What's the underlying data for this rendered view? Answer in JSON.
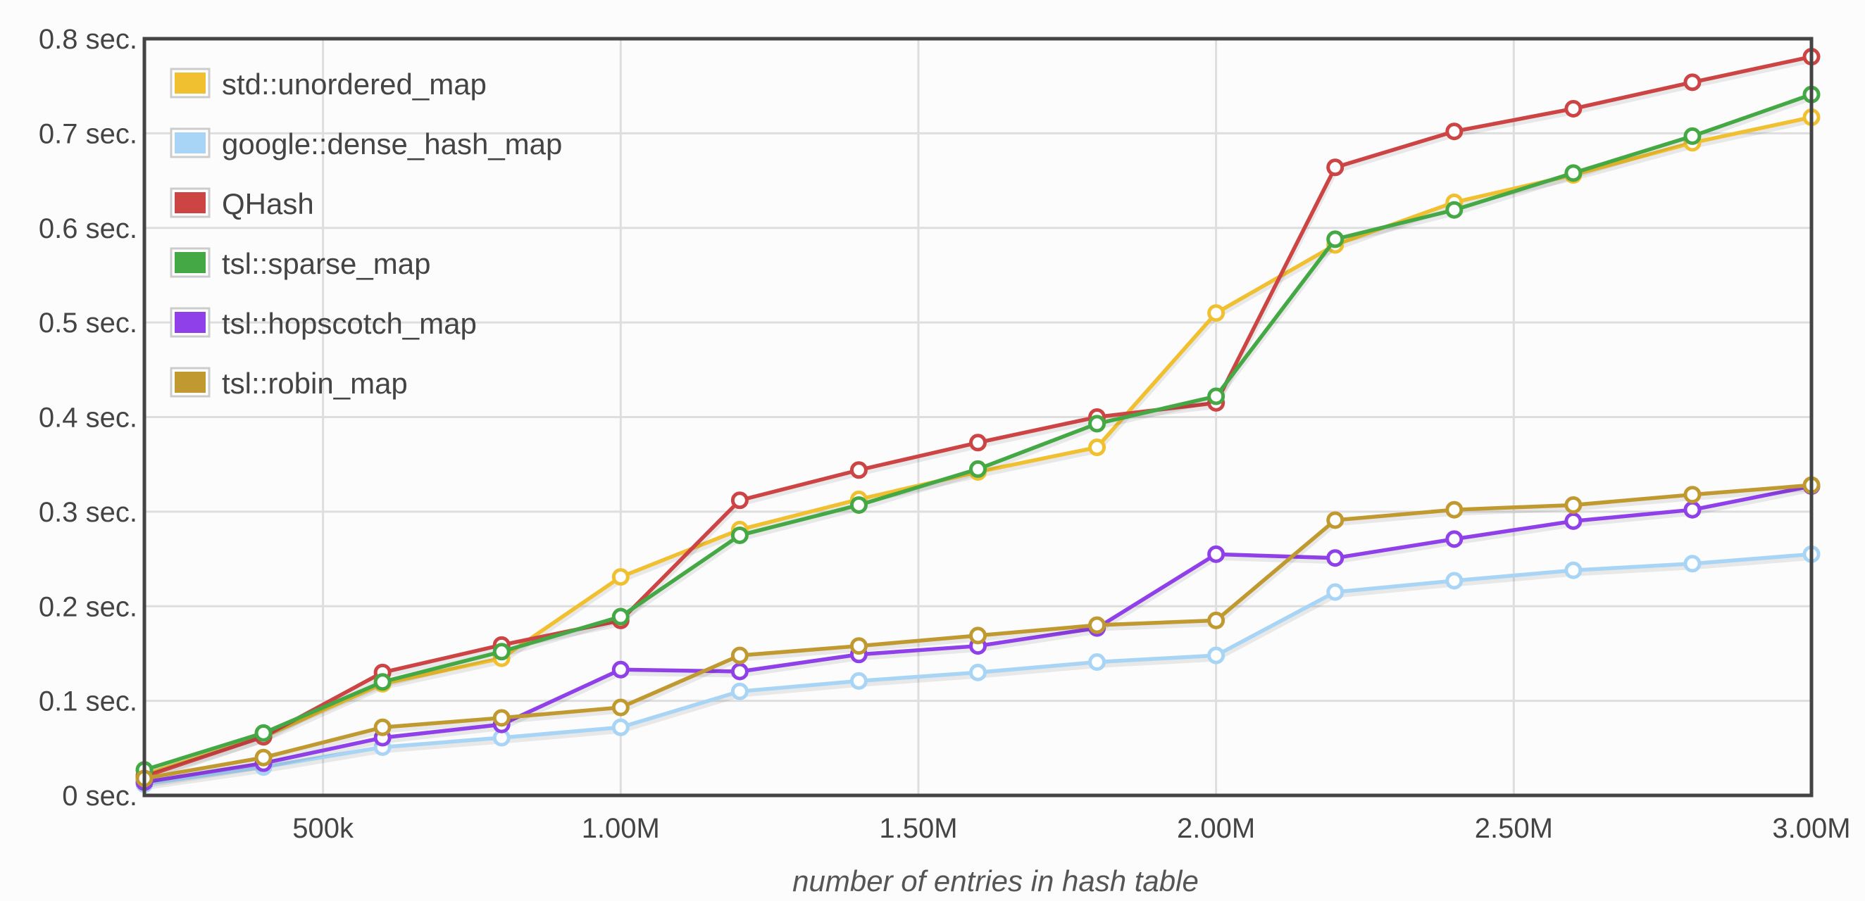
{
  "chart_data": {
    "type": "line",
    "title": "",
    "xlabel": "number of entries in hash table",
    "ylabel": "",
    "xlim": [
      200000,
      3000000
    ],
    "ylim": [
      0,
      0.8
    ],
    "grid": true,
    "legend_position": "top-left",
    "x_ticks": [
      {
        "value": 500000,
        "label": "500k"
      },
      {
        "value": 1000000,
        "label": "1.00M"
      },
      {
        "value": 1500000,
        "label": "1.50M"
      },
      {
        "value": 2000000,
        "label": "2.00M"
      },
      {
        "value": 2500000,
        "label": "2.50M"
      },
      {
        "value": 3000000,
        "label": "3.00M"
      }
    ],
    "y_ticks": [
      {
        "value": 0,
        "label": "0 sec."
      },
      {
        "value": 0.1,
        "label": "0.1 sec."
      },
      {
        "value": 0.2,
        "label": "0.2 sec."
      },
      {
        "value": 0.3,
        "label": "0.3 sec."
      },
      {
        "value": 0.4,
        "label": "0.4 sec."
      },
      {
        "value": 0.5,
        "label": "0.5 sec."
      },
      {
        "value": 0.6,
        "label": "0.6 sec."
      },
      {
        "value": 0.7,
        "label": "0.7 sec."
      },
      {
        "value": 0.8,
        "label": "0.8 sec."
      }
    ],
    "x": [
      200000,
      400000,
      600000,
      800000,
      1000000,
      1200000,
      1400000,
      1600000,
      1800000,
      2000000,
      2200000,
      2400000,
      2600000,
      2800000,
      3000000
    ],
    "series": [
      {
        "name": "std::unordered_map",
        "color": "#f0c030",
        "values": [
          0.022,
          0.062,
          0.118,
          0.145,
          0.231,
          0.281,
          0.313,
          0.342,
          0.368,
          0.51,
          0.582,
          0.627,
          0.656,
          0.69,
          0.717
        ]
      },
      {
        "name": "google::dense_hash_map",
        "color": "#a8d4f5",
        "values": [
          0.012,
          0.03,
          0.051,
          0.061,
          0.072,
          0.11,
          0.121,
          0.13,
          0.141,
          0.148,
          0.215,
          0.227,
          0.238,
          0.245,
          0.255
        ]
      },
      {
        "name": "QHash",
        "color": "#cc4444",
        "values": [
          0.02,
          0.062,
          0.13,
          0.159,
          0.185,
          0.312,
          0.344,
          0.373,
          0.4,
          0.415,
          0.664,
          0.702,
          0.726,
          0.754,
          0.781
        ]
      },
      {
        "name": "tsl::sparse_map",
        "color": "#44a844",
        "values": [
          0.027,
          0.066,
          0.12,
          0.152,
          0.189,
          0.275,
          0.307,
          0.345,
          0.393,
          0.422,
          0.588,
          0.619,
          0.658,
          0.697,
          0.741
        ]
      },
      {
        "name": "tsl::hopscotch_map",
        "color": "#9040e8",
        "values": [
          0.014,
          0.034,
          0.061,
          0.075,
          0.133,
          0.131,
          0.149,
          0.158,
          0.177,
          0.255,
          0.251,
          0.271,
          0.29,
          0.302,
          0.327
        ]
      },
      {
        "name": "tsl::robin_map",
        "color": "#c09a30",
        "values": [
          0.018,
          0.04,
          0.072,
          0.082,
          0.093,
          0.148,
          0.158,
          0.169,
          0.18,
          0.185,
          0.291,
          0.302,
          0.307,
          0.318,
          0.328
        ]
      }
    ]
  }
}
